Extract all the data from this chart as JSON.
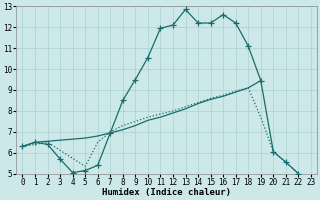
{
  "xlabel": "Humidex (Indice chaleur)",
  "bg_color": "#cce8e8",
  "grid_color": "#aad0d0",
  "line_color": "#1a6b6b",
  "xlim": [
    -0.5,
    23.5
  ],
  "ylim": [
    5,
    13
  ],
  "line1_x": [
    0,
    1,
    2,
    3,
    4,
    5,
    6,
    7,
    8,
    9,
    10,
    11,
    12,
    13,
    14,
    15,
    16,
    17,
    18,
    19,
    20,
    21,
    22
  ],
  "line1_y": [
    6.3,
    6.5,
    6.4,
    5.7,
    5.05,
    5.15,
    5.4,
    6.95,
    8.5,
    9.5,
    10.55,
    11.95,
    12.1,
    12.85,
    12.2,
    12.2,
    12.6,
    12.2,
    11.1,
    9.45,
    6.05,
    5.55,
    5.0
  ],
  "line2_x": [
    0,
    1,
    2,
    3,
    4,
    5,
    6,
    7,
    8,
    9,
    10,
    11,
    12,
    13,
    14,
    15,
    16,
    17,
    18,
    19
  ],
  "line2_y": [
    6.3,
    6.5,
    6.55,
    6.6,
    6.65,
    6.7,
    6.8,
    6.95,
    7.1,
    7.3,
    7.55,
    7.7,
    7.9,
    8.1,
    8.35,
    8.55,
    8.7,
    8.9,
    9.1,
    9.45
  ],
  "line3_x": [
    0,
    2,
    5,
    6,
    7,
    8,
    9,
    10,
    11,
    12,
    13,
    14,
    15,
    16,
    17,
    18,
    19,
    20,
    21,
    22
  ],
  "line3_y": [
    6.3,
    6.5,
    5.35,
    6.5,
    7.0,
    7.3,
    7.5,
    7.7,
    7.85,
    8.0,
    8.2,
    8.4,
    8.6,
    8.75,
    8.95,
    9.1,
    7.7,
    6.05,
    5.55,
    5.0
  ],
  "yticks": [
    5,
    6,
    7,
    8,
    9,
    10,
    11,
    12,
    13
  ],
  "xticks": [
    0,
    1,
    2,
    3,
    4,
    5,
    6,
    7,
    8,
    9,
    10,
    11,
    12,
    13,
    14,
    15,
    16,
    17,
    18,
    19,
    20,
    21,
    22,
    23
  ]
}
